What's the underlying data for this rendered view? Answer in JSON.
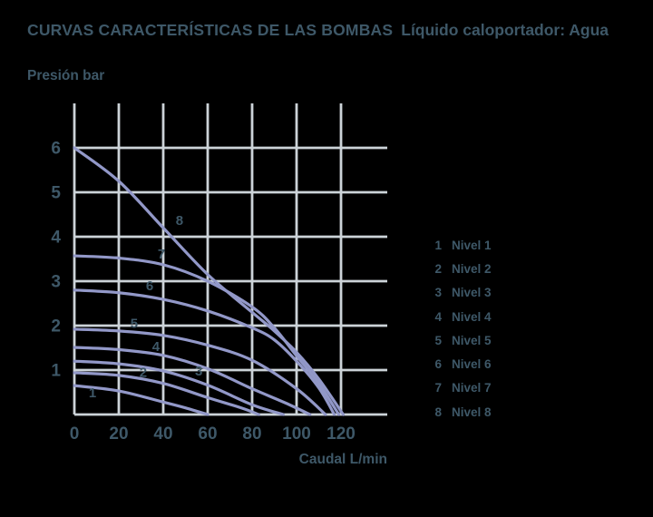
{
  "colors": {
    "background": "#000000",
    "text": "#3e5868",
    "grid": "#ccd3d8",
    "curve": "#9298c8"
  },
  "chart_data": {
    "type": "line",
    "title": "CURVAS CARACTERÍSTICAS DE LAS BOMBAS",
    "subtitle": "Líquido caloportador: Agua",
    "xlabel": "Caudal L/min",
    "ylabel": "Presión bar",
    "x_unit": "L/min",
    "y_unit": "bar",
    "xlim": [
      0,
      141
    ],
    "ylim": [
      0,
      7
    ],
    "xticks": [
      0,
      20,
      40,
      60,
      80,
      100,
      120
    ],
    "yticks": [
      1,
      2,
      3,
      4,
      5,
      6
    ],
    "grid": true,
    "legend_position": "right",
    "series": [
      {
        "id": "1",
        "name": "Nivel 1",
        "curve_label_at": [
          8.2,
          0.49
        ],
        "points": [
          [
            0,
            0.65
          ],
          [
            20,
            0.53
          ],
          [
            40,
            0.28
          ],
          [
            50,
            0.15
          ],
          [
            60,
            0
          ]
        ]
      },
      {
        "id": "2",
        "name": "Nivel 2",
        "curve_label_at": [
          31,
          0.95
        ],
        "points": [
          [
            0,
            0.94
          ],
          [
            20,
            0.88
          ],
          [
            40,
            0.7
          ],
          [
            60,
            0.38
          ],
          [
            75,
            0.15
          ],
          [
            83,
            0
          ]
        ]
      },
      {
        "id": "3",
        "name": "Nivel 3",
        "curve_label_at": [
          56,
          0.98
        ],
        "points": [
          [
            0,
            1.2
          ],
          [
            20,
            1.14
          ],
          [
            40,
            0.98
          ],
          [
            60,
            0.66
          ],
          [
            80,
            0.22
          ],
          [
            94,
            0
          ]
        ]
      },
      {
        "id": "4",
        "name": "Nivel 4",
        "curve_label_at": [
          36.7,
          1.53
        ],
        "points": [
          [
            0,
            1.51
          ],
          [
            20,
            1.46
          ],
          [
            40,
            1.33
          ],
          [
            60,
            1.03
          ],
          [
            80,
            0.58
          ],
          [
            95,
            0.26
          ],
          [
            106,
            0
          ]
        ]
      },
      {
        "id": "5",
        "name": "Nivel 5",
        "curve_label_at": [
          26.9,
          2.05
        ],
        "points": [
          [
            0,
            1.92
          ],
          [
            20,
            1.88
          ],
          [
            40,
            1.78
          ],
          [
            60,
            1.56
          ],
          [
            80,
            1.22
          ],
          [
            100,
            0.58
          ],
          [
            113,
            0
          ]
        ]
      },
      {
        "id": "6",
        "name": "Nivel 6",
        "curve_label_at": [
          33.9,
          2.9
        ],
        "points": [
          [
            0,
            2.8
          ],
          [
            20,
            2.74
          ],
          [
            40,
            2.59
          ],
          [
            60,
            2.33
          ],
          [
            80,
            1.95
          ],
          [
            90,
            1.68
          ],
          [
            100,
            1.2
          ],
          [
            110,
            0.6
          ],
          [
            117,
            0
          ]
        ]
      },
      {
        "id": "7",
        "name": "Nivel 7",
        "curve_label_at": [
          39.2,
          3.61
        ],
        "points": [
          [
            0,
            3.57
          ],
          [
            20,
            3.52
          ],
          [
            40,
            3.37
          ],
          [
            60,
            3.0
          ],
          [
            80,
            2.42
          ],
          [
            90,
            1.95
          ],
          [
            100,
            1.32
          ],
          [
            110,
            0.7
          ],
          [
            119,
            0
          ]
        ]
      },
      {
        "id": "8",
        "name": "Nivel 8",
        "curve_label_at": [
          47.3,
          4.37
        ],
        "points": [
          [
            0,
            6.0
          ],
          [
            20,
            5.25
          ],
          [
            40,
            4.2
          ],
          [
            60,
            3.15
          ],
          [
            80,
            2.3
          ],
          [
            90,
            1.88
          ],
          [
            100,
            1.4
          ],
          [
            110,
            0.8
          ],
          [
            121,
            0
          ]
        ]
      }
    ]
  }
}
